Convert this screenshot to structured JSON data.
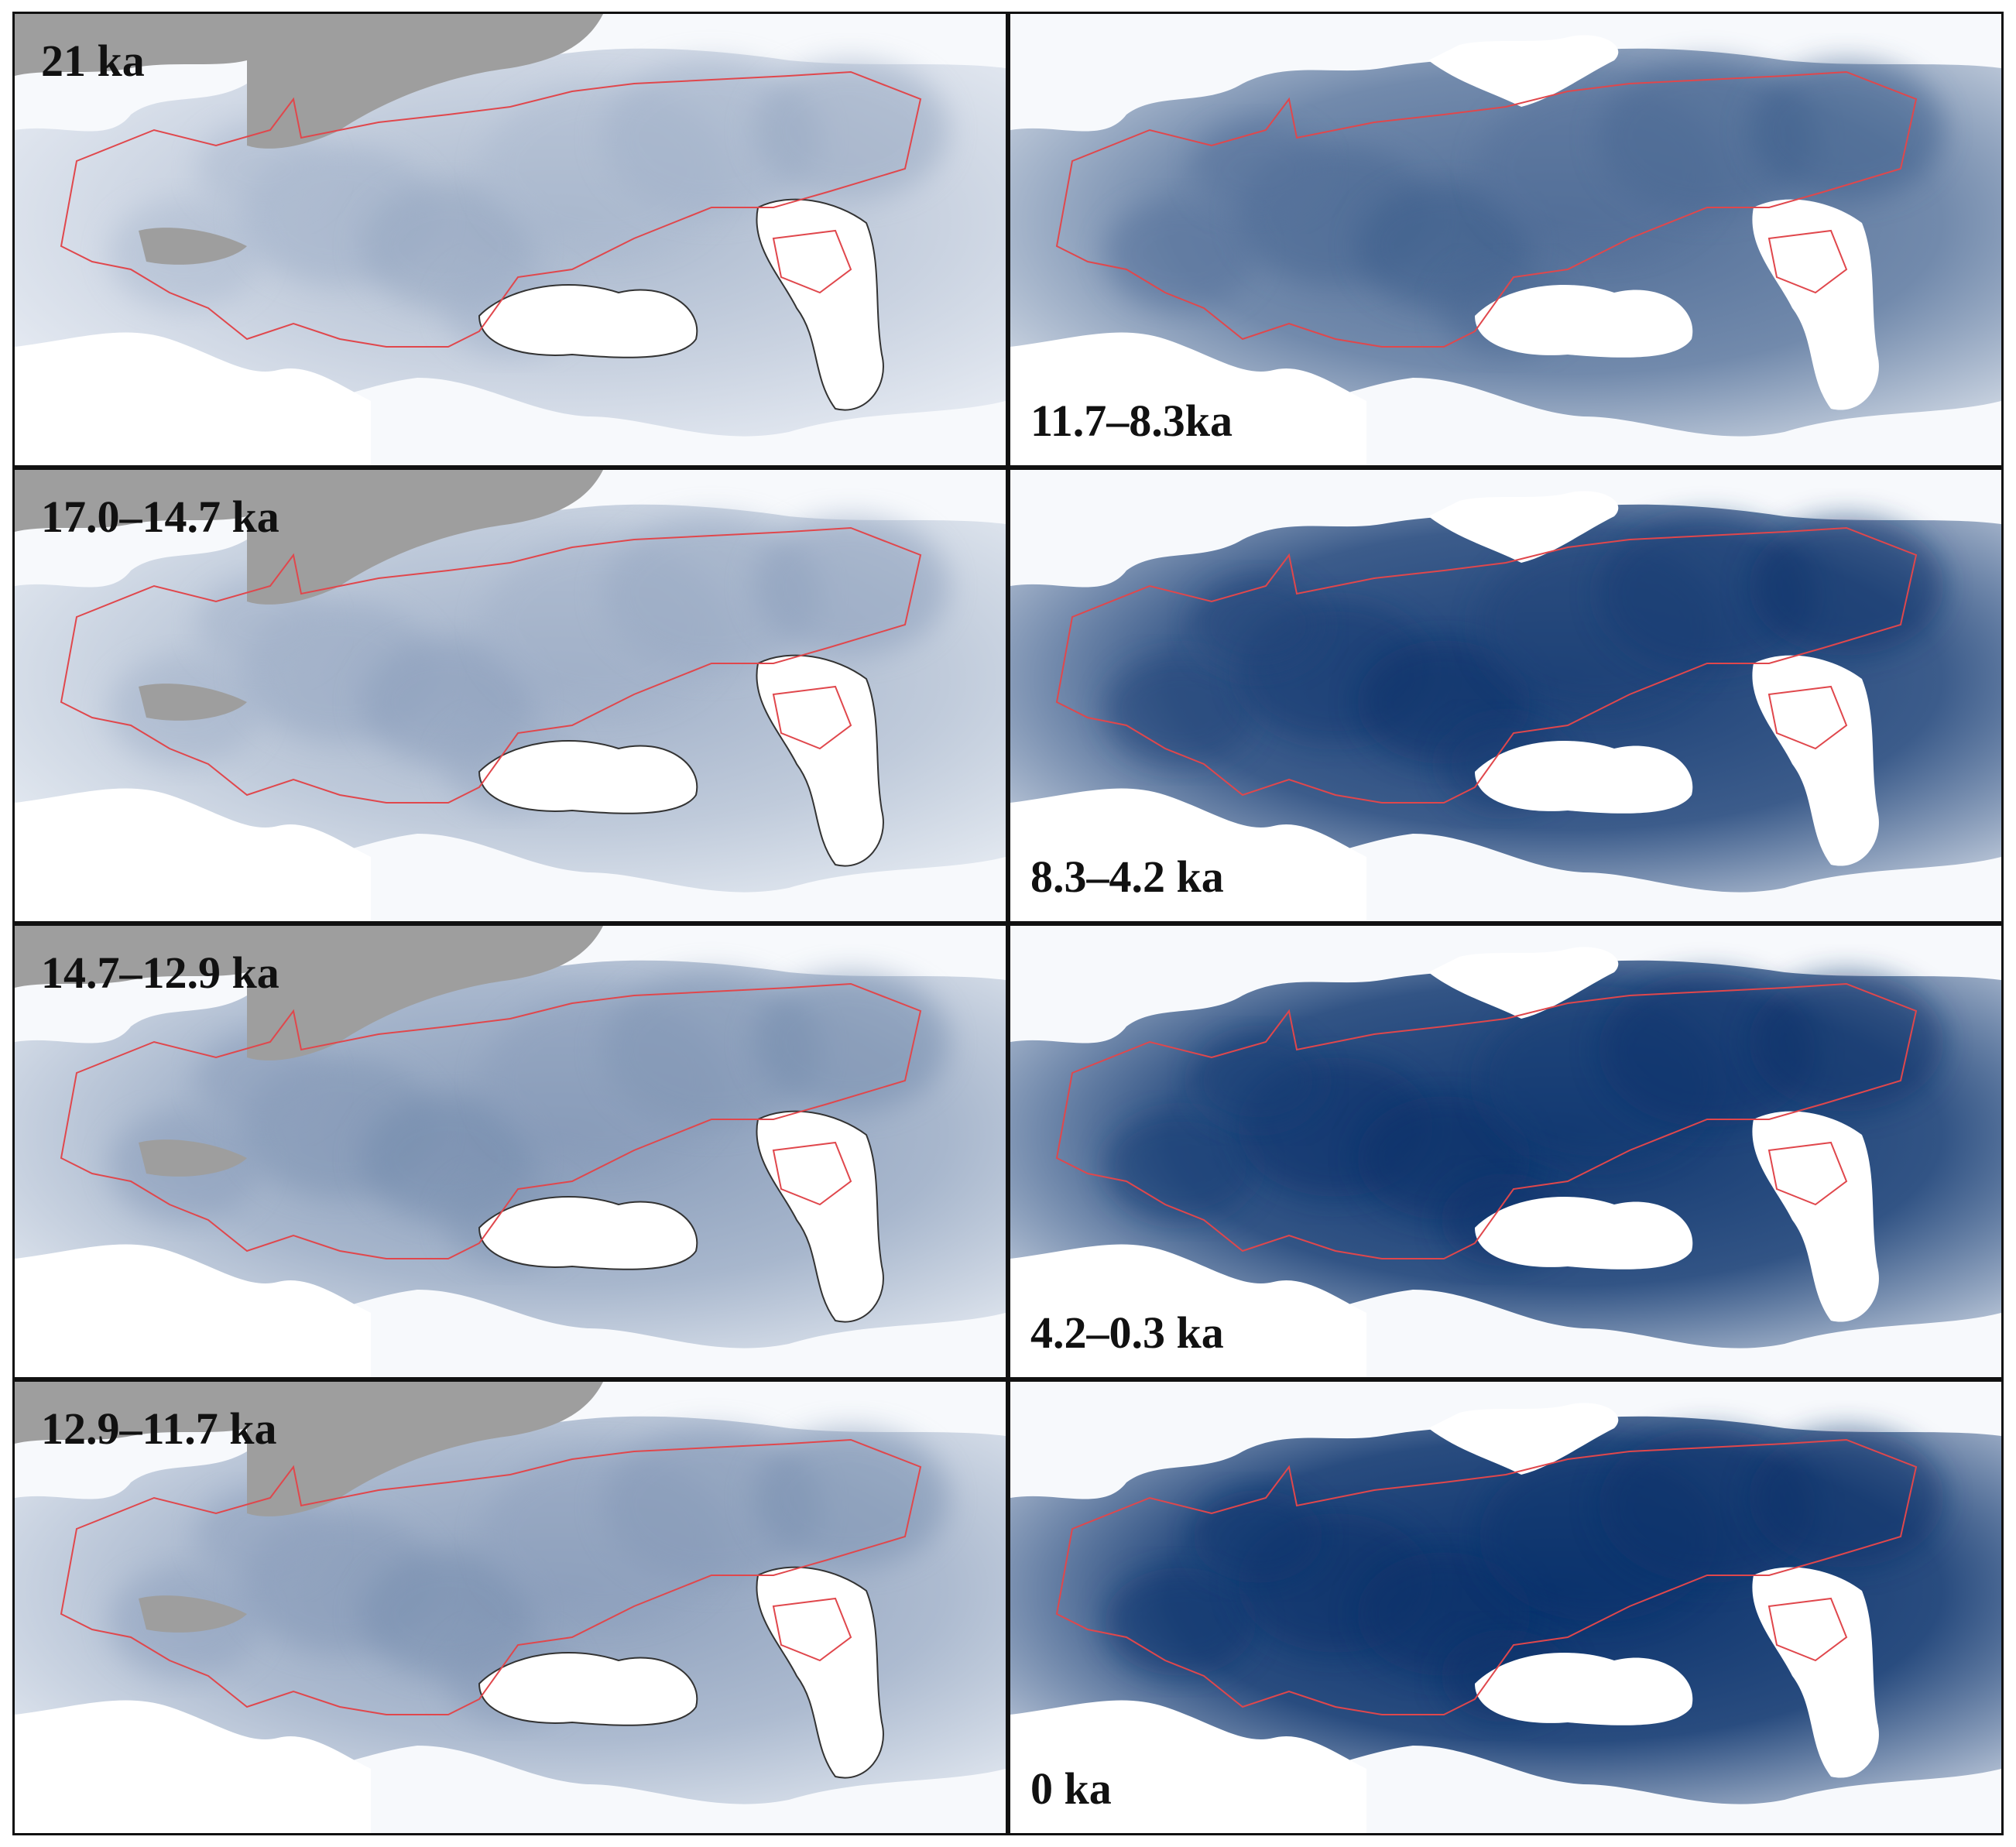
{
  "figure": {
    "panels": [
      {
        "label": "21 ka",
        "label_position": "top-left",
        "suitability_level": 0.18,
        "ice_sheet": true
      },
      {
        "label": "11.7–8.3ka",
        "label_position": "bottom-left",
        "suitability_level": 0.55,
        "ice_sheet": false
      },
      {
        "label": "17.0–14.7 ka",
        "label_position": "top-left",
        "suitability_level": 0.22,
        "ice_sheet": true
      },
      {
        "label": "8.3–4.2 ka",
        "label_position": "bottom-left",
        "suitability_level": 0.78,
        "ice_sheet": false
      },
      {
        "label": "14.7–12.9 ka",
        "label_position": "top-left",
        "suitability_level": 0.32,
        "ice_sheet": true
      },
      {
        "label": "4.2–0.3 ka",
        "label_position": "bottom-left",
        "suitability_level": 0.82,
        "ice_sheet": false
      },
      {
        "label": "12.9–11.7 ka",
        "label_position": "top-left",
        "suitability_level": 0.3,
        "ice_sheet": true
      },
      {
        "label": "0 ka",
        "label_position": "bottom-left",
        "suitability_level": 0.86,
        "ice_sheet": false
      }
    ],
    "colors": {
      "suitability_low": "#f4f7fb",
      "suitability_high": "#08306b",
      "ice_sheet": "#9e9e9e",
      "range_outline": "#e0474c",
      "coastline": "#333333",
      "water": "#ffffff"
    }
  }
}
